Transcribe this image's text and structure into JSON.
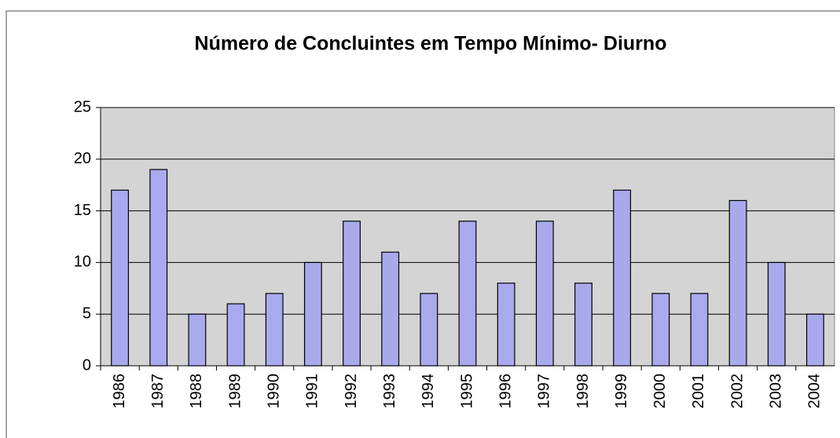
{
  "chart_data": {
    "type": "bar",
    "title": "Número de Concluintes em Tempo Mínimo- Diurno",
    "categories": [
      "1986",
      "1987",
      "1988",
      "1989",
      "1990",
      "1991",
      "1992",
      "1993",
      "1994",
      "1995",
      "1996",
      "1997",
      "1998",
      "1999",
      "2000",
      "2001",
      "2002",
      "2003",
      "2004"
    ],
    "values": [
      17,
      19,
      5,
      6,
      7,
      10,
      14,
      11,
      7,
      14,
      8,
      14,
      8,
      17,
      7,
      7,
      16,
      10,
      5
    ],
    "color": "#a9aaee",
    "ylim": [
      0,
      25
    ],
    "yticks": [
      0,
      5,
      10,
      15,
      20,
      25
    ],
    "grid": true
  }
}
